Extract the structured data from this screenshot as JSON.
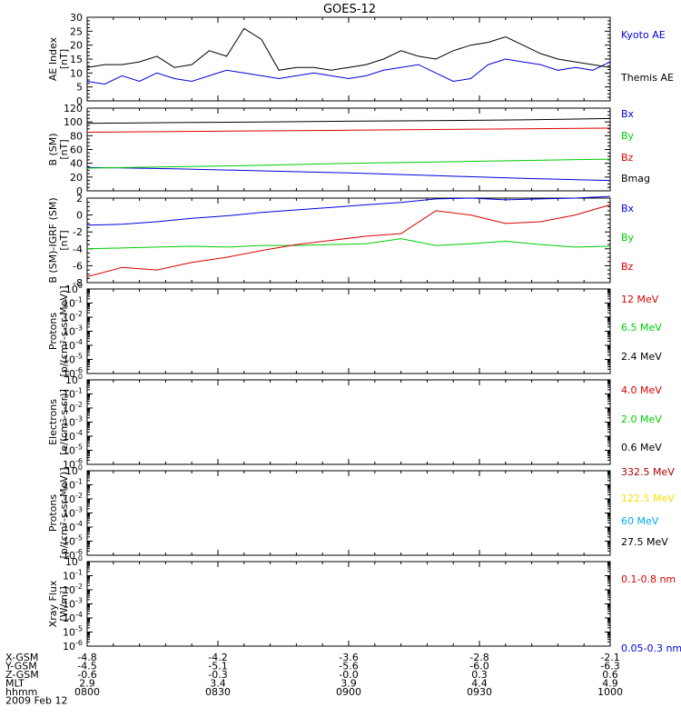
{
  "title": "GOES-12",
  "colors": {
    "black": "#000000",
    "red": "#dd0000",
    "green": "#00cc00",
    "blue": "#0000dd",
    "yellow": "#ffdd00",
    "cyan": "#00aaee"
  },
  "chart_data": [
    {
      "id": "ae",
      "type": "line",
      "ylabel": [
        "AE Index",
        "[nT]"
      ],
      "ylim": [
        0,
        30
      ],
      "yticks": [
        0,
        5,
        10,
        15,
        20,
        25,
        30
      ],
      "x": [
        0,
        4,
        8,
        12,
        16,
        20,
        24,
        28,
        32,
        36,
        40,
        44,
        48,
        52,
        56,
        60,
        64,
        68,
        72,
        76,
        80,
        84,
        88,
        92,
        96,
        100,
        104,
        108,
        112,
        116,
        120
      ],
      "series": [
        {
          "name": "Kyoto AE",
          "color": "#0000dd",
          "values": [
            7,
            6,
            9,
            7,
            10,
            8,
            7,
            9,
            11,
            10,
            9,
            8,
            9,
            10,
            9,
            8,
            9,
            11,
            12,
            13,
            10,
            7,
            8,
            13,
            15,
            14,
            13,
            11,
            12,
            11,
            14
          ]
        },
        {
          "name": "Themis AE",
          "color": "#000000",
          "values": [
            12,
            13,
            13,
            14,
            16,
            12,
            13,
            18,
            16,
            26,
            22,
            11,
            12,
            12,
            11,
            12,
            13,
            15,
            18,
            16,
            15,
            18,
            20,
            21,
            23,
            20,
            17,
            15,
            14,
            13,
            12
          ]
        }
      ]
    },
    {
      "id": "b",
      "type": "line",
      "ylabel": [
        "B (SM)",
        "[nT]"
      ],
      "ylim": [
        0,
        120
      ],
      "yticks": [
        0,
        20,
        40,
        60,
        80,
        100,
        120
      ],
      "x": [
        0,
        20,
        40,
        60,
        80,
        100,
        120
      ],
      "series": [
        {
          "name": "Bx",
          "color": "#0000dd",
          "values": [
            34,
            32,
            29,
            26,
            22,
            18,
            15
          ]
        },
        {
          "name": "By",
          "color": "#00cc00",
          "values": [
            33,
            35,
            37,
            40,
            42,
            44,
            46
          ]
        },
        {
          "name": "Bz",
          "color": "#dd0000",
          "values": [
            85,
            86,
            87,
            88,
            89,
            90,
            91
          ]
        },
        {
          "name": "Bmag",
          "color": "#000000",
          "values": [
            98,
            99,
            100,
            101,
            102,
            103,
            105
          ]
        }
      ]
    },
    {
      "id": "bd",
      "type": "line",
      "ylabel": [
        "B (SM)-IGRF (SM)",
        "[nT]"
      ],
      "ylim": [
        -8,
        2
      ],
      "yticks": [
        -8,
        -6,
        -4,
        -2,
        0,
        2
      ],
      "x": [
        0,
        8,
        16,
        24,
        32,
        40,
        48,
        56,
        64,
        72,
        80,
        88,
        96,
        104,
        112,
        120
      ],
      "series": [
        {
          "name": "Bx",
          "color": "#0000dd",
          "values": [
            -1.2,
            -1.1,
            -0.8,
            -0.4,
            -0.1,
            0.3,
            0.6,
            0.9,
            1.2,
            1.5,
            1.9,
            2.0,
            1.8,
            1.9,
            2.0,
            2.2
          ]
        },
        {
          "name": "By",
          "color": "#00cc00",
          "values": [
            -4.0,
            -3.9,
            -3.8,
            -3.7,
            -3.8,
            -3.6,
            -3.6,
            -3.5,
            -3.4,
            -2.8,
            -3.6,
            -3.4,
            -3.1,
            -3.5,
            -3.8,
            -3.7
          ]
        },
        {
          "name": "Bz",
          "color": "#dd0000",
          "values": [
            -7.3,
            -6.2,
            -6.5,
            -5.6,
            -5.0,
            -4.2,
            -3.5,
            -3.0,
            -2.5,
            -2.2,
            0.5,
            0.0,
            -1.0,
            -0.8,
            0.0,
            1.2
          ]
        }
      ]
    },
    {
      "id": "p1",
      "type": "line",
      "yscale": "log",
      "ylabel": [
        "Protons",
        "[p/(cm²-s-sr-MeV)]"
      ],
      "ylim": [
        1e-06,
        1
      ],
      "ytick_exps": [
        -6,
        -5,
        -4,
        -3,
        -2,
        -1,
        0
      ],
      "series": [
        {
          "name": "12 MeV",
          "color": "#dd0000",
          "values": []
        },
        {
          "name": "6.5 MeV",
          "color": "#00cc00",
          "values": []
        },
        {
          "name": "2.4 MeV",
          "color": "#000000",
          "values": []
        }
      ]
    },
    {
      "id": "e1",
      "type": "line",
      "yscale": "log",
      "ylabel": [
        "Electrons",
        "[e/(cm²-s-sr)]"
      ],
      "ylim": [
        1e-06,
        1
      ],
      "ytick_exps": [
        -6,
        -5,
        -4,
        -3,
        -2,
        -1,
        0
      ],
      "series": [
        {
          "name": "4.0 MeV",
          "color": "#dd0000",
          "values": []
        },
        {
          "name": "2.0 MeV",
          "color": "#00cc00",
          "values": []
        },
        {
          "name": "0.6 MeV",
          "color": "#000000",
          "values": []
        }
      ]
    },
    {
      "id": "p2",
      "type": "line",
      "yscale": "log",
      "ylabel": [
        "Protons",
        "[p/(cm²-s-sr-MeV)]"
      ],
      "ylim": [
        1e-06,
        1
      ],
      "ytick_exps": [
        -6,
        -5,
        -4,
        -3,
        -2,
        -1,
        0
      ],
      "series": [
        {
          "name": "332.5 MeV",
          "color": "#aa0000",
          "values": []
        },
        {
          "name": "122.5 MeV",
          "color": "#ffdd00",
          "values": []
        },
        {
          "name": "60 MeV",
          "color": "#00aaee",
          "values": []
        },
        {
          "name": "27.5 MeV",
          "color": "#000000",
          "values": []
        }
      ]
    },
    {
      "id": "x",
      "type": "line",
      "yscale": "log",
      "ylabel": [
        "Xray Flux",
        "[W/m²]"
      ],
      "ylim": [
        1e-06,
        1
      ],
      "ytick_exps": [
        -6,
        -5,
        -4,
        -3,
        -2,
        -1,
        0
      ],
      "series": [
        {
          "name": "0.1-0.8 nm",
          "color": "#dd0000",
          "values": []
        },
        {
          "name": "0.05-0.3 nm",
          "color": "#0000dd",
          "values": []
        }
      ]
    }
  ],
  "x_axis": {
    "xlim": [
      0,
      120
    ],
    "major_ticks": [
      0,
      30,
      60,
      90,
      120
    ],
    "rows": [
      {
        "label": "X-GSM",
        "values": [
          "-4.8",
          "-4.2",
          "-3.6",
          "-2.8",
          "-2.1"
        ]
      },
      {
        "label": "Y-GSM",
        "values": [
          "-4.5",
          "-5.1",
          "-5.6",
          "-6.0",
          "-6.3"
        ]
      },
      {
        "label": "Z-GSM",
        "values": [
          "-0.6",
          "-0.3",
          "-0.0",
          "0.3",
          "0.6"
        ]
      },
      {
        "label": "MLT",
        "values": [
          "2.9",
          "3.4",
          "3.9",
          "4.4",
          "4.9"
        ]
      },
      {
        "label": "hhmm",
        "values": [
          "0800",
          "0830",
          "0900",
          "0930",
          "1000"
        ]
      }
    ],
    "date": "2009 Feb 12"
  }
}
